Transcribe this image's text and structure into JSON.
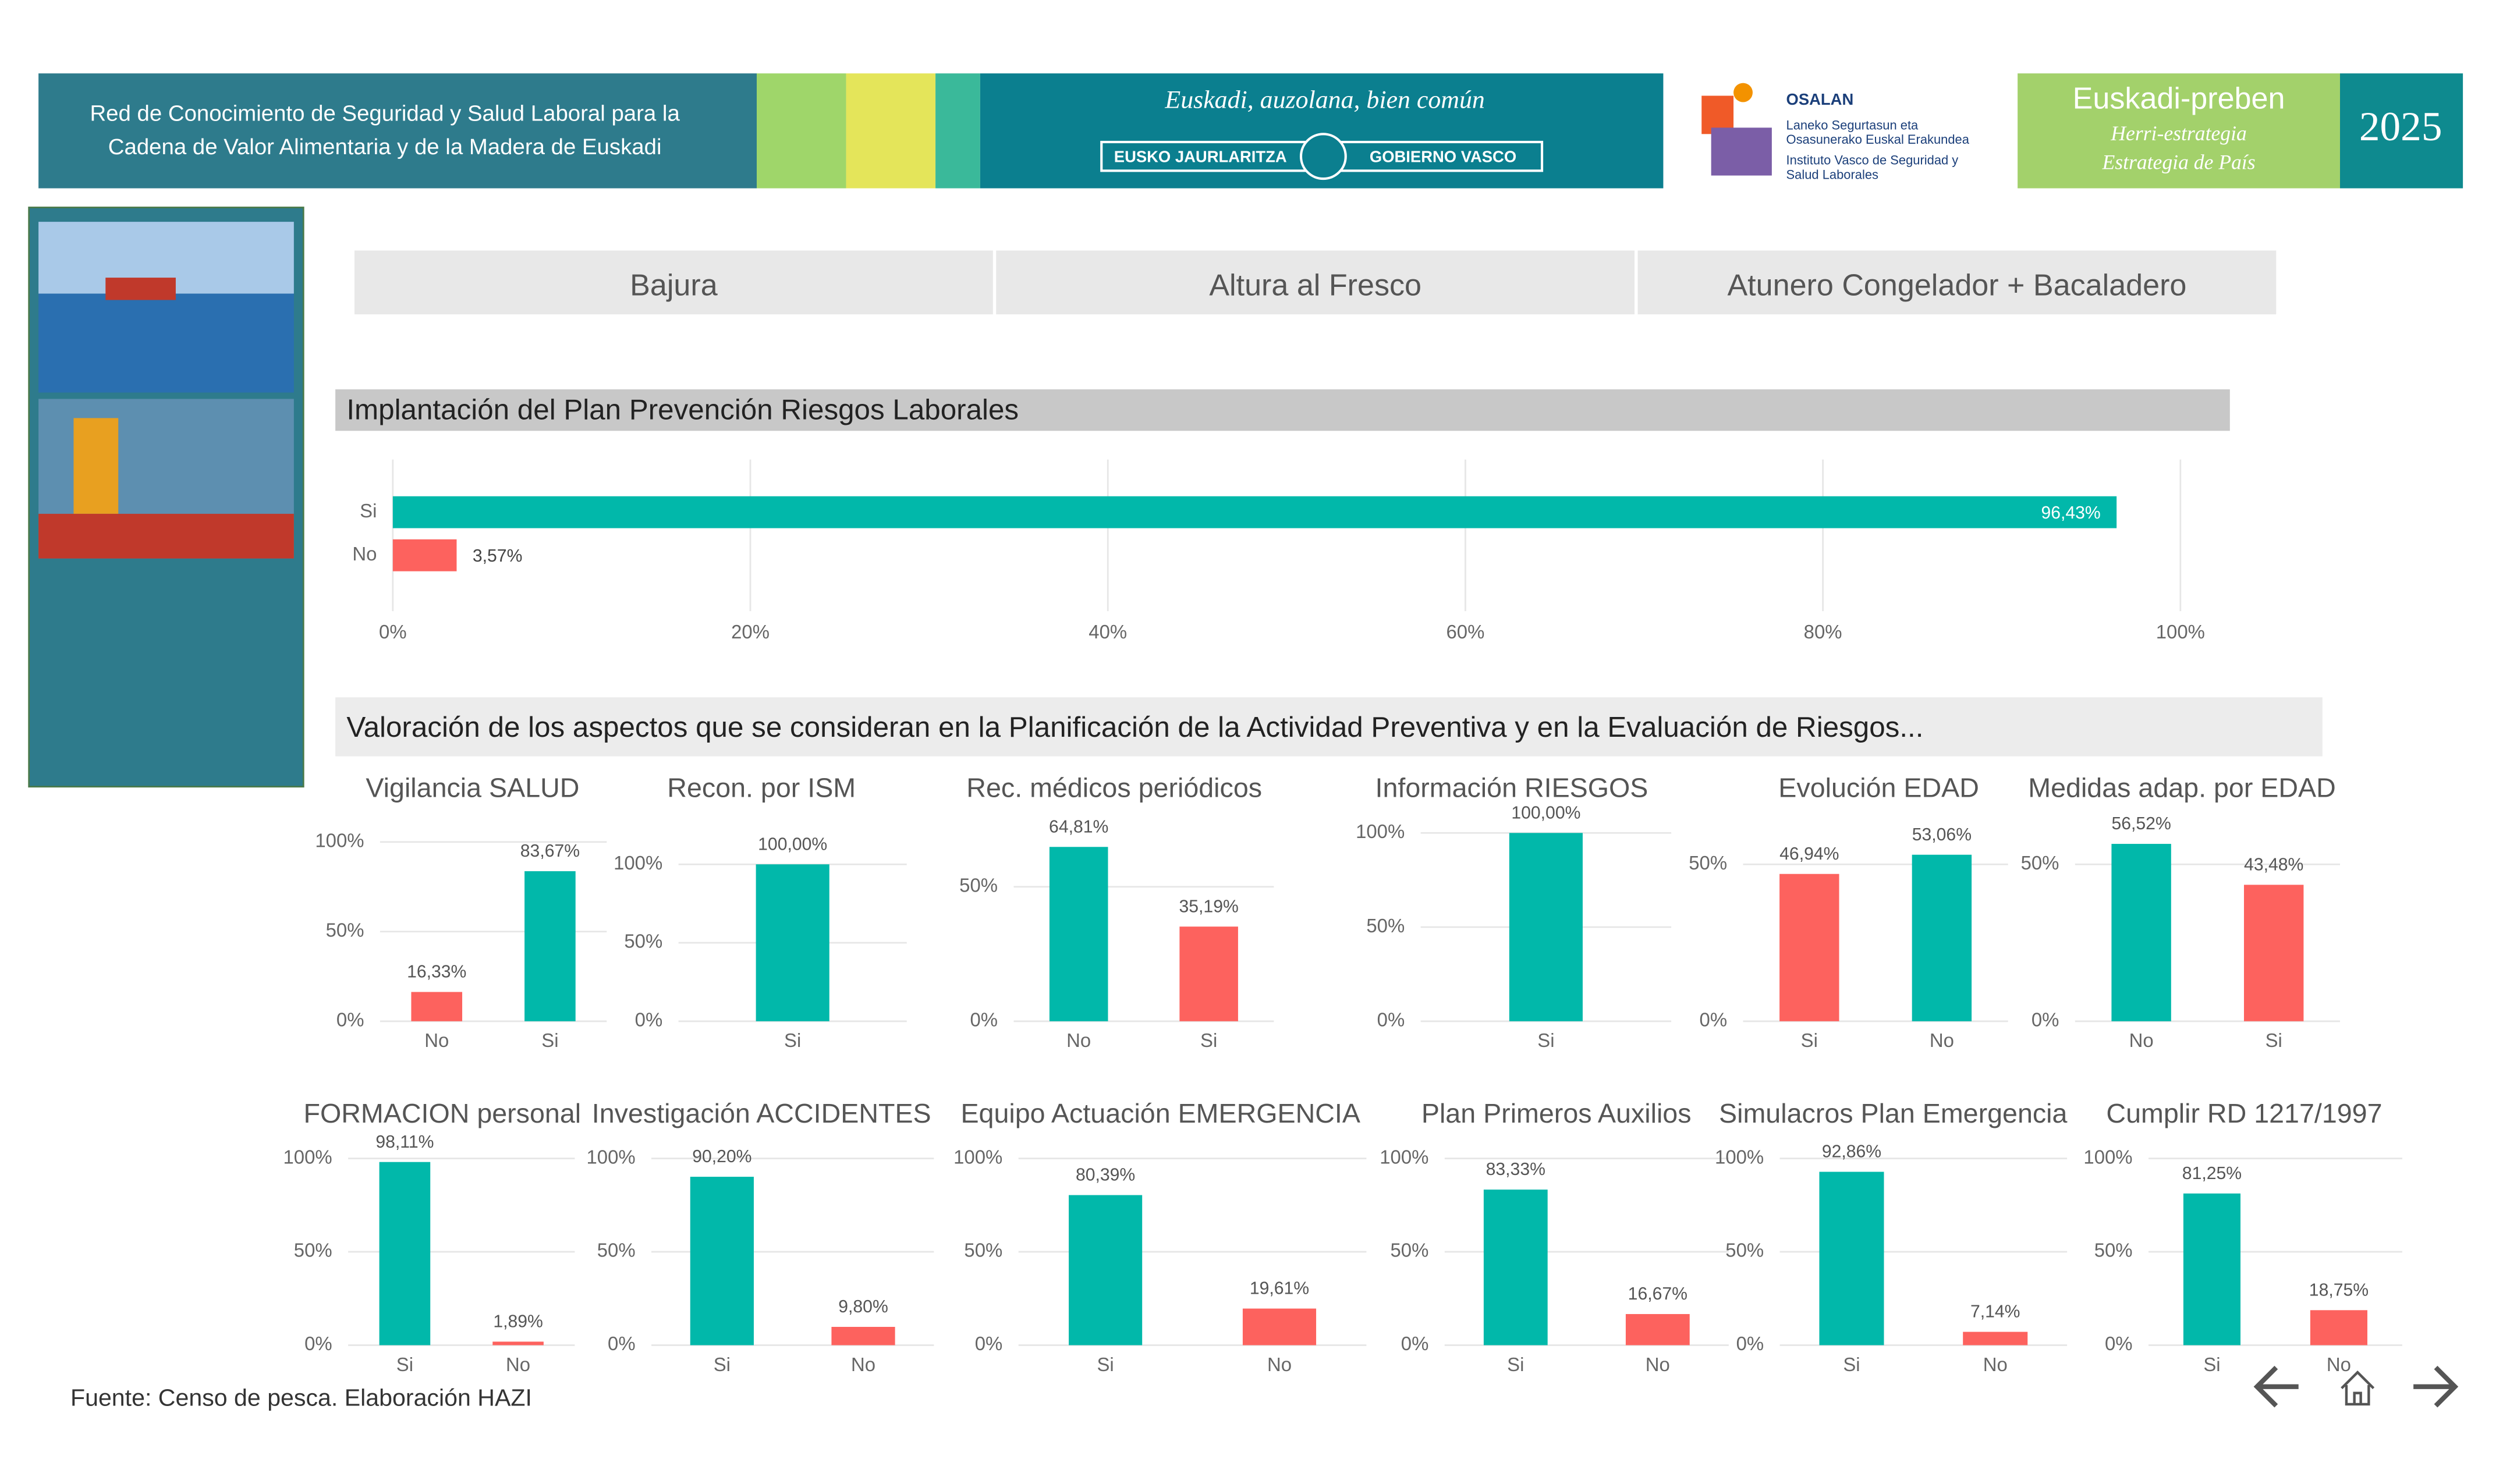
{
  "header": {
    "title_lines": [
      "Red de Conocimiento de Seguridad y Salud Laboral para la",
      "Cadena de Valor Alimentaria y de la Madera de Euskadi"
    ],
    "gov_motto": "Euskadi, auzolana, bien común",
    "gov_left": "EUSKO JAURLARITZA",
    "gov_right": "GOBIERNO VASCO",
    "osalan_name": "OSALAN",
    "osalan_lines": [
      "Laneko Segurtasun eta",
      "Osasunerako Euskal Erakundea",
      "Instituto Vasco de Seguridad y",
      "Salud Laborales"
    ],
    "strategy_title": "Euskadi-preben",
    "strategy_lines": [
      "Herri-estrategia",
      "Estrategia de País"
    ],
    "year": "2025"
  },
  "tabs": [
    "Bajura",
    "Altura al Fresco",
    "Atunero Congelador + Bacaladero"
  ],
  "sections": [
    "Implantación del Plan Prevención Riesgos Laborales",
    "Valoración de los aspectos que se consideran en la Planificación de la Actividad Preventiva y en la Evaluación de Riesgos..."
  ],
  "footer": "Fuente: Censo de pesca. Elaboración HAZI",
  "chart_data": [
    {
      "type": "hbar",
      "categories": [
        "Si",
        "No"
      ],
      "values": [
        96.43,
        3.57
      ],
      "value_labels": [
        "96,43%",
        "3,57%"
      ],
      "colors": [
        "#01b8aa",
        "#fd625e"
      ],
      "xlim": [
        0,
        100
      ],
      "xticks": [
        {
          "value": 0,
          "label": "0%"
        },
        {
          "value": 20,
          "label": "20%"
        },
        {
          "value": 40,
          "label": "40%"
        },
        {
          "value": 60,
          "label": "60%"
        },
        {
          "value": 80,
          "label": "80%"
        },
        {
          "value": 100,
          "label": "100%"
        }
      ],
      "grid": true
    },
    {
      "type": "bar",
      "title": "Vigilancia SALUD",
      "categories": [
        "No",
        "Si"
      ],
      "values": [
        16.33,
        83.67
      ],
      "value_labels": [
        "16,33%",
        "83,67%"
      ],
      "colors": [
        "#fd625e",
        "#01b8aa"
      ],
      "ylim": [
        0,
        105
      ],
      "yticks": [
        {
          "value": 0,
          "label": "0%"
        },
        {
          "value": 50,
          "label": "50%"
        },
        {
          "value": 100,
          "label": "100%"
        }
      ],
      "grid": true
    },
    {
      "type": "bar",
      "title": "Recon. por ISM",
      "categories": [
        "Si"
      ],
      "values": [
        100.0
      ],
      "value_labels": [
        "100,00%"
      ],
      "colors": [
        "#01b8aa"
      ],
      "ylim": [
        0,
        120
      ],
      "yticks": [
        {
          "value": 0,
          "label": "0%"
        },
        {
          "value": 50,
          "label": "50%"
        },
        {
          "value": 100,
          "label": "100%"
        }
      ],
      "grid": true
    },
    {
      "type": "bar",
      "title": "Rec. médicos periódicos",
      "categories": [
        "No",
        "Si"
      ],
      "values": [
        64.81,
        35.19
      ],
      "value_labels": [
        "64,81%",
        "35,19%"
      ],
      "colors": [
        "#01b8aa",
        "#fd625e"
      ],
      "ylim": [
        0,
        70
      ],
      "yticks": [
        {
          "value": 0,
          "label": "0%"
        },
        {
          "value": 50,
          "label": "50%"
        }
      ],
      "grid": true
    },
    {
      "type": "bar",
      "title": "Información RIESGOS",
      "categories": [
        "Si"
      ],
      "values": [
        100.0
      ],
      "value_labels": [
        "100,00%"
      ],
      "colors": [
        "#01b8aa"
      ],
      "ylim": [
        0,
        100
      ],
      "yticks": [
        {
          "value": 0,
          "label": "0%"
        },
        {
          "value": 50,
          "label": "50%"
        },
        {
          "value": 100,
          "label": "100%"
        }
      ],
      "grid": true
    },
    {
      "type": "bar",
      "title": "Evolución EDAD",
      "categories": [
        "Si",
        "No"
      ],
      "values": [
        46.94,
        53.06
      ],
      "value_labels": [
        "46,94%",
        "53,06%"
      ],
      "colors": [
        "#fd625e",
        "#01b8aa"
      ],
      "ylim": [
        0,
        60
      ],
      "yticks": [
        {
          "value": 0,
          "label": "0%"
        },
        {
          "value": 50,
          "label": "50%"
        }
      ],
      "grid": true
    },
    {
      "type": "bar",
      "title": "Medidas adap. por EDAD",
      "categories": [
        "No",
        "Si"
      ],
      "values": [
        56.52,
        43.48
      ],
      "value_labels": [
        "56,52%",
        "43,48%"
      ],
      "colors": [
        "#01b8aa",
        "#fd625e"
      ],
      "ylim": [
        0,
        60
      ],
      "yticks": [
        {
          "value": 0,
          "label": "0%"
        },
        {
          "value": 50,
          "label": "50%"
        }
      ],
      "grid": true
    },
    {
      "type": "bar",
      "title": "FORMACION personal",
      "categories": [
        "Si",
        "No"
      ],
      "values": [
        98.11,
        1.89
      ],
      "value_labels": [
        "98,11%",
        "1,89%"
      ],
      "colors": [
        "#01b8aa",
        "#fd625e"
      ],
      "ylim": [
        0,
        100
      ],
      "yticks": [
        {
          "value": 0,
          "label": "0%"
        },
        {
          "value": 50,
          "label": "50%"
        },
        {
          "value": 100,
          "label": "100%"
        }
      ],
      "grid": true
    },
    {
      "type": "bar",
      "title": "Investigación ACCIDENTES",
      "categories": [
        "Si",
        "No"
      ],
      "values": [
        90.2,
        9.8
      ],
      "value_labels": [
        "90,20%",
        "9,80%"
      ],
      "colors": [
        "#01b8aa",
        "#fd625e"
      ],
      "ylim": [
        0,
        100
      ],
      "yticks": [
        {
          "value": 0,
          "label": "0%"
        },
        {
          "value": 50,
          "label": "50%"
        },
        {
          "value": 100,
          "label": "100%"
        }
      ],
      "grid": true
    },
    {
      "type": "bar",
      "title": "Equipo Actuación EMERGENCIA",
      "categories": [
        "Si",
        "No"
      ],
      "values": [
        80.39,
        19.61
      ],
      "value_labels": [
        "80,39%",
        "19,61%"
      ],
      "colors": [
        "#01b8aa",
        "#fd625e"
      ],
      "ylim": [
        0,
        100
      ],
      "yticks": [
        {
          "value": 0,
          "label": "0%"
        },
        {
          "value": 50,
          "label": "50%"
        },
        {
          "value": 100,
          "label": "100%"
        }
      ],
      "grid": true
    },
    {
      "type": "bar",
      "title": "Plan Primeros Auxilios",
      "categories": [
        "Si",
        "No"
      ],
      "values": [
        83.33,
        16.67
      ],
      "value_labels": [
        "83,33%",
        "16,67%"
      ],
      "colors": [
        "#01b8aa",
        "#fd625e"
      ],
      "ylim": [
        0,
        100
      ],
      "yticks": [
        {
          "value": 0,
          "label": "0%"
        },
        {
          "value": 50,
          "label": "50%"
        },
        {
          "value": 100,
          "label": "100%"
        }
      ],
      "grid": true
    },
    {
      "type": "bar",
      "title": "Simulacros Plan Emergencia",
      "categories": [
        "Si",
        "No"
      ],
      "values": [
        92.86,
        7.14
      ],
      "value_labels": [
        "92,86%",
        "7,14%"
      ],
      "colors": [
        "#01b8aa",
        "#fd625e"
      ],
      "ylim": [
        0,
        100
      ],
      "yticks": [
        {
          "value": 0,
          "label": "0%"
        },
        {
          "value": 50,
          "label": "50%"
        },
        {
          "value": 100,
          "label": "100%"
        }
      ],
      "grid": true
    },
    {
      "type": "bar",
      "title": "Cumplir RD 1217/1997",
      "categories": [
        "Si",
        "No"
      ],
      "values": [
        81.25,
        18.75
      ],
      "value_labels": [
        "81,25%",
        "18,75%"
      ],
      "colors": [
        "#01b8aa",
        "#fd625e"
      ],
      "ylim": [
        0,
        100
      ],
      "yticks": [
        {
          "value": 0,
          "label": "0%"
        },
        {
          "value": 50,
          "label": "50%"
        },
        {
          "value": 100,
          "label": "100%"
        }
      ],
      "grid": true
    }
  ]
}
